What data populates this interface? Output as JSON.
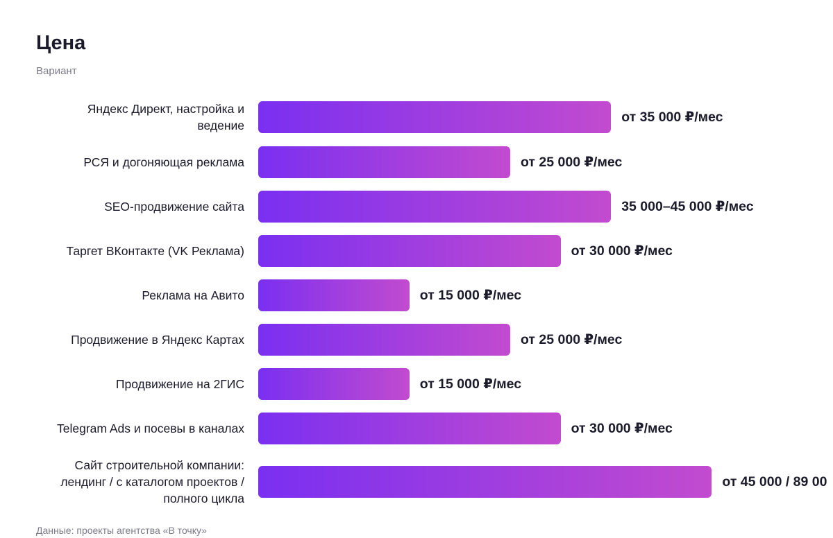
{
  "chart_data": {
    "type": "bar",
    "title": "Цена",
    "subtitle": "Вариант",
    "categories": [
      "Яндекс Директ, настройка и\nведение",
      "РСЯ и догоняющая реклама",
      "SEO-продвижение сайта",
      "Таргет ВКонтакте (VK Реклама)",
      "Реклама на Авито",
      "Продвижение в Яндекс Картах",
      "Продвижение на 2ГИС",
      "Telegram Ads и посевы в каналах",
      "Сайт строительной компании:\nлендинг / с каталогом проектов /\nполного цикла"
    ],
    "values": [
      35000,
      25000,
      35000,
      30000,
      15000,
      25000,
      15000,
      30000,
      45000
    ],
    "value_labels": [
      "от 35 000 ₽/мес",
      "от 25 000 ₽/мес",
      "35 000–45 000 ₽/мес",
      "от 30 000 ₽/мес",
      "от 15 000 ₽/мес",
      "от 25 000 ₽/мес",
      "от 15 000 ₽/мес",
      "от 30 000 ₽/мес",
      "от 45 000 / 89 00"
    ],
    "color": [
      "#7a2ff1",
      "#c24bcf"
    ],
    "source": "Данные: проекты агентства «В точку»"
  }
}
